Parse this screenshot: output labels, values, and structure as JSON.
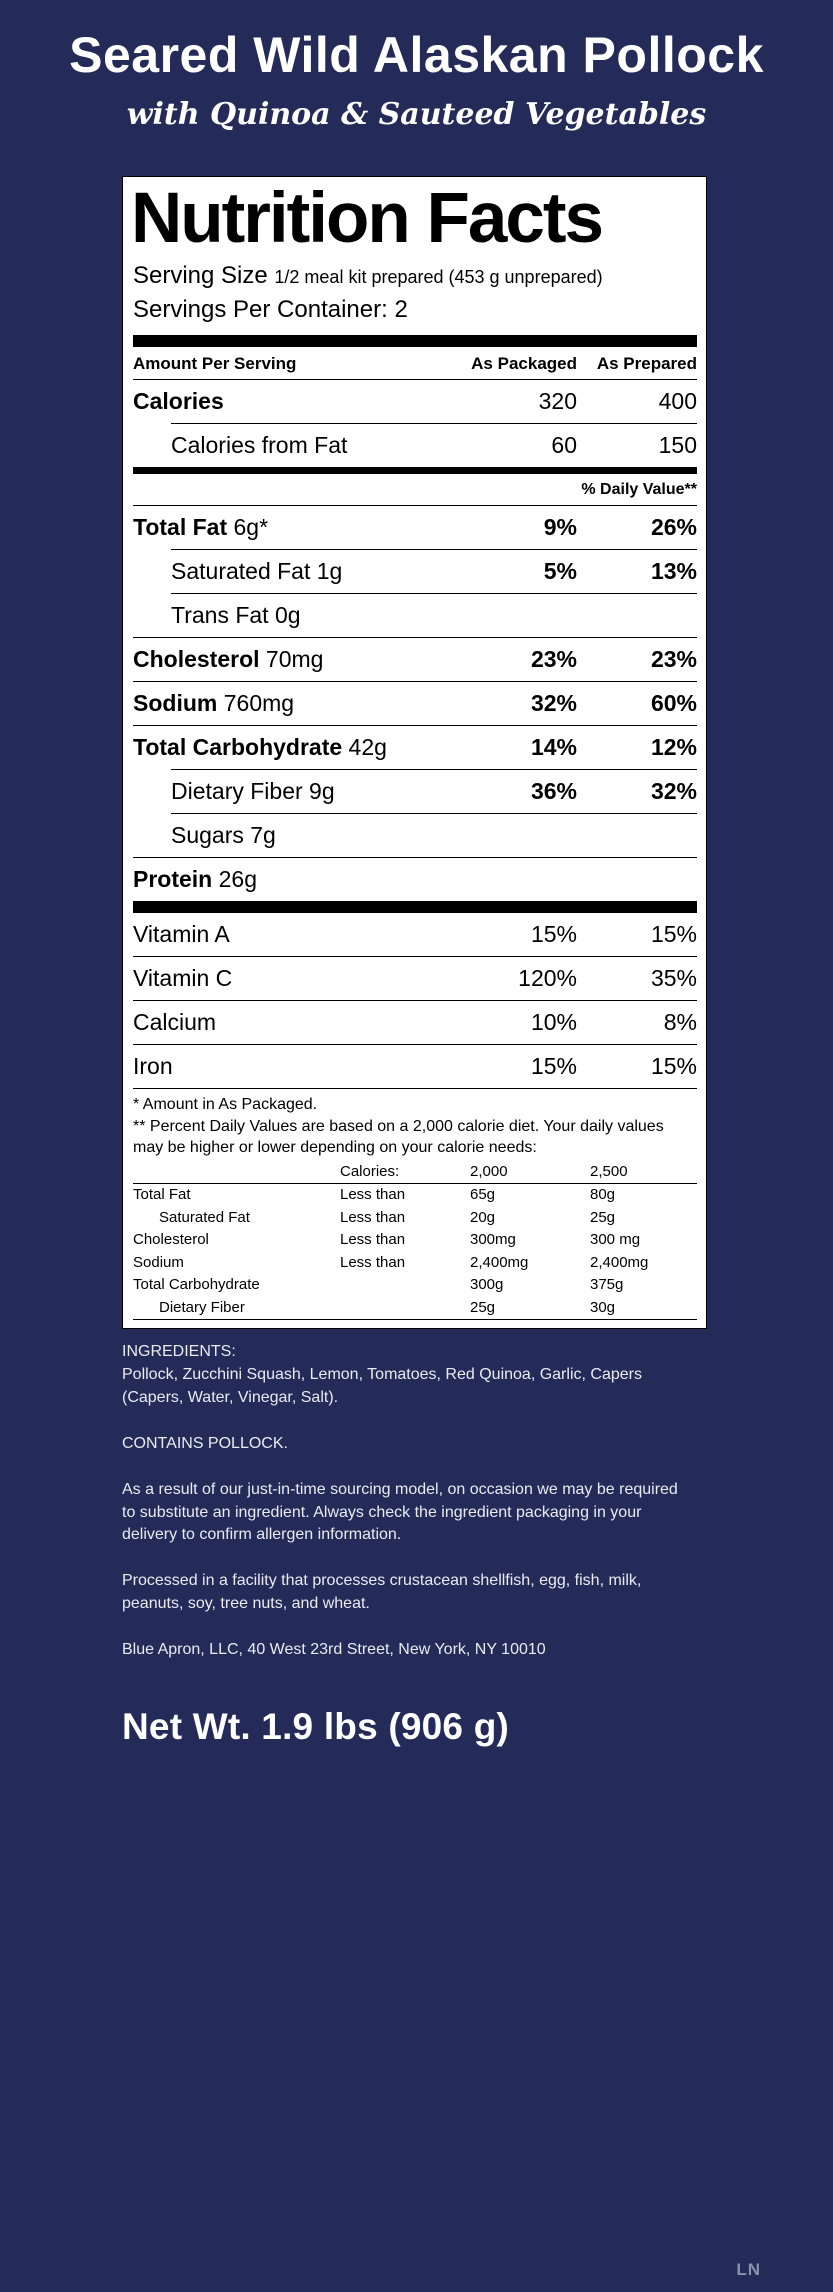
{
  "header": {
    "title": "Seared Wild Alaskan Pollock",
    "subtitle": "with Quinoa & Sauteed Vegetables"
  },
  "label": {
    "title": "Nutrition Facts",
    "serving_size_label": "Serving Size",
    "serving_size_value": "1/2 meal kit prepared (453 g unprepared)",
    "servings_per_container": "Servings Per Container: 2",
    "columns": {
      "amount": "Amount Per Serving",
      "packaged": "As Packaged",
      "prepared": "As Prepared"
    },
    "daily_value_header": "% Daily Value**",
    "calorie_rows": [
      {
        "name": "Calories",
        "amount": "",
        "bold": true,
        "indent": false,
        "v1": "320",
        "v2": "400",
        "vbold": false,
        "rule_below": "indent"
      },
      {
        "name": "Calories from Fat",
        "amount": "",
        "bold": false,
        "indent": true,
        "v1": "60",
        "v2": "150",
        "vbold": false,
        "rule_below": "none"
      }
    ],
    "nutrient_rows": [
      {
        "name": "Total Fat",
        "amount": "6g*",
        "bold": true,
        "indent": false,
        "v1": "9%",
        "v2": "26%",
        "vbold": true,
        "rule_below": "indent"
      },
      {
        "name": "Saturated Fat",
        "amount": "1g",
        "bold": false,
        "indent": true,
        "v1": "5%",
        "v2": "13%",
        "vbold": true,
        "rule_below": "indent"
      },
      {
        "name": "Trans Fat",
        "amount": "0g",
        "bold": false,
        "indent": true,
        "v1": "",
        "v2": "",
        "vbold": false,
        "rule_below": "full"
      },
      {
        "name": "Cholesterol",
        "amount": "70mg",
        "bold": true,
        "indent": false,
        "v1": "23%",
        "v2": "23%",
        "vbold": true,
        "rule_below": "full"
      },
      {
        "name": "Sodium",
        "amount": "760mg",
        "bold": true,
        "indent": false,
        "v1": "32%",
        "v2": "60%",
        "vbold": true,
        "rule_below": "full"
      },
      {
        "name": "Total Carbohydrate",
        "amount": "42g",
        "bold": true,
        "indent": false,
        "v1": "14%",
        "v2": "12%",
        "vbold": true,
        "rule_below": "indent"
      },
      {
        "name": "Dietary Fiber",
        "amount": "9g",
        "bold": false,
        "indent": true,
        "v1": "36%",
        "v2": "32%",
        "vbold": true,
        "rule_below": "indent"
      },
      {
        "name": "Sugars",
        "amount": "7g",
        "bold": false,
        "indent": true,
        "v1": "",
        "v2": "",
        "vbold": false,
        "rule_below": "full"
      },
      {
        "name": "Protein",
        "amount": "26g",
        "bold": true,
        "indent": false,
        "v1": "",
        "v2": "",
        "vbold": false,
        "rule_below": "none"
      }
    ],
    "vitamin_rows": [
      {
        "name": "Vitamin A",
        "amount": "",
        "bold": false,
        "indent": false,
        "v1": "15%",
        "v2": "15%",
        "vbold": false,
        "rule_below": "full"
      },
      {
        "name": "Vitamin C",
        "amount": "",
        "bold": false,
        "indent": false,
        "v1": "120%",
        "v2": "35%",
        "vbold": false,
        "rule_below": "full"
      },
      {
        "name": "Calcium",
        "amount": "",
        "bold": false,
        "indent": false,
        "v1": "10%",
        "v2": "8%",
        "vbold": false,
        "rule_below": "full"
      },
      {
        "name": "Iron",
        "amount": "",
        "bold": false,
        "indent": false,
        "v1": "15%",
        "v2": "15%",
        "vbold": false,
        "rule_below": "full"
      }
    ],
    "footnotes": [
      "* Amount in As Packaged.",
      "** Percent Daily Values are based on a 2,000 calorie diet. Your daily values may be higher or lower depending on your calorie needs:"
    ],
    "reference_table": {
      "header": [
        "",
        "Calories:",
        "2,000",
        "2,500"
      ],
      "rows": [
        {
          "cells": [
            "Total Fat",
            "Less than",
            "65g",
            "80g"
          ],
          "indent": false
        },
        {
          "cells": [
            "Saturated Fat",
            "Less than",
            "20g",
            "25g"
          ],
          "indent": true
        },
        {
          "cells": [
            "Cholesterol",
            "Less than",
            "300mg",
            "300 mg"
          ],
          "indent": false
        },
        {
          "cells": [
            "Sodium",
            "Less than",
            "2,400mg",
            "2,400mg"
          ],
          "indent": false
        },
        {
          "cells": [
            "Total Carbohydrate",
            "",
            "300g",
            "375g"
          ],
          "indent": false
        },
        {
          "cells": [
            "Dietary Fiber",
            "",
            "25g",
            "30g"
          ],
          "indent": true
        }
      ]
    }
  },
  "info": {
    "paragraphs": [
      "INGREDIENTS:\nPollock, Zucchini Squash, Lemon, Tomatoes, Red Quinoa, Garlic, Capers (Capers, Water, Vinegar, Salt).",
      "CONTAINS POLLOCK.",
      "As a result of our just-in-time sourcing model, on occasion we may be required to substitute an ingredient. Always check the ingredient packaging in your delivery to confirm allergen information.",
      "Processed in a facility that processes crustacean shellfish, egg, fish, milk, peanuts, soy, tree nuts, and wheat."
    ],
    "address": "Blue Apron, LLC, 40 West 23rd Street, New York, NY 10010"
  },
  "net_weight": "Net Wt. 1.9 lbs (906 g)",
  "watermark": "LN",
  "colors": {
    "background": "#242b58",
    "label_bg": "#ffffff",
    "text_light": "#e9ebf1"
  }
}
